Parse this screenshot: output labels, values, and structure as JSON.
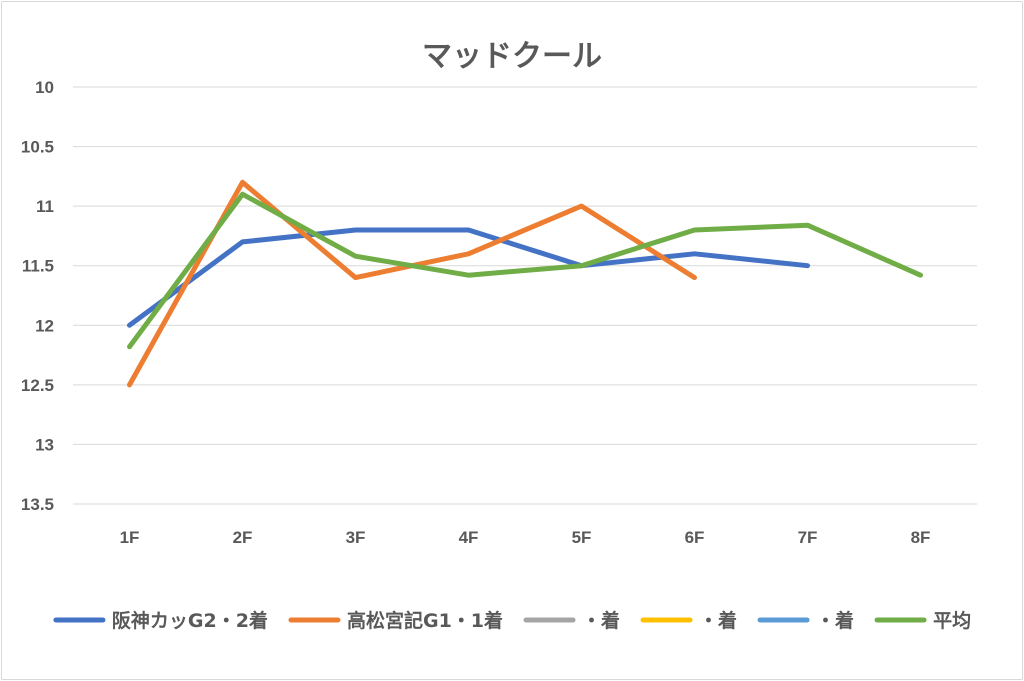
{
  "chart_data": {
    "type": "line",
    "title": "マッドクール",
    "categories": [
      "1F",
      "2F",
      "3F",
      "4F",
      "5F",
      "6F",
      "7F",
      "8F"
    ],
    "y_ticks": [
      "10",
      "10.5",
      "11",
      "11.5",
      "12",
      "12.5",
      "13",
      "13.5"
    ],
    "ylim": [
      10,
      13.5
    ],
    "y_reversed": true,
    "grid": "horizontal",
    "legend_position": "bottom",
    "series": [
      {
        "name": "阪神カッG2・2着",
        "color": "#4472c4",
        "values": [
          12.0,
          11.3,
          11.2,
          11.2,
          11.5,
          11.4,
          11.5,
          null
        ]
      },
      {
        "name": "高松宮記G1・1着",
        "color": "#ed7d31",
        "values": [
          12.5,
          10.8,
          11.6,
          11.4,
          11.0,
          11.6,
          null,
          null
        ]
      },
      {
        "name": "・着",
        "color": "#a5a5a5",
        "values": [
          null,
          null,
          null,
          null,
          null,
          null,
          null,
          null
        ]
      },
      {
        "name": "・着",
        "color": "#ffc000",
        "values": [
          null,
          null,
          null,
          null,
          null,
          null,
          null,
          null
        ]
      },
      {
        "name": "・着",
        "color": "#5b9bd5",
        "values": [
          null,
          null,
          null,
          null,
          null,
          null,
          null,
          null
        ]
      },
      {
        "name": "平均",
        "color": "#70ad47",
        "values": [
          12.18,
          10.9,
          11.42,
          11.58,
          11.5,
          11.2,
          11.16,
          11.58
        ]
      }
    ]
  }
}
